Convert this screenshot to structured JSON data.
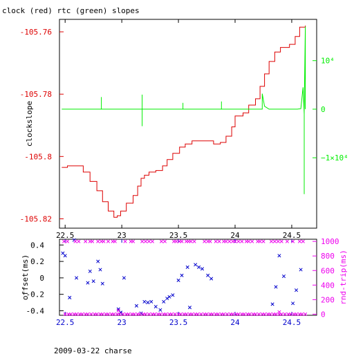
{
  "title": "clock (red) rtc (green) slopes",
  "footer": "2009-03-22 charse",
  "colors": {
    "clock": "#dd0000",
    "rtc": "#00ee00",
    "offset": "#0000cc",
    "rtt": "#ee00ee",
    "axis": "#000000"
  },
  "chart_data": [
    {
      "type": "line",
      "ylabel": "clockslope",
      "y2label": "",
      "xlim": [
        22.45,
        24.72
      ],
      "ylim": [
        -105.823,
        -105.756
      ],
      "y2lim": [
        -24500,
        18500
      ],
      "x_ticks": [
        "22.5",
        "23",
        "23.5",
        "24",
        "24.5"
      ],
      "x_tick_values": [
        22.5,
        23,
        23.5,
        24,
        24.5
      ],
      "y_ticks": [
        "-105.76",
        "-105.78",
        "-105.8",
        "-105.82"
      ],
      "y_tick_values": [
        -105.76,
        -105.78,
        -105.8,
        -105.82
      ],
      "y2_ticks": [
        "10⁴",
        "0",
        "−1×10⁴"
      ],
      "y2_tick_values": [
        10000,
        0,
        -10000
      ],
      "series": [
        {
          "id": "clock",
          "axis": "left",
          "points": [
            [
              22.47,
              -105.8035
            ],
            [
              22.52,
              -105.803
            ],
            [
              22.6,
              -105.803
            ],
            [
              22.66,
              -105.805
            ],
            [
              22.72,
              -105.808
            ],
            [
              22.78,
              -105.811
            ],
            [
              22.83,
              -105.8145
            ],
            [
              22.88,
              -105.8175
            ],
            [
              22.93,
              -105.8195
            ],
            [
              22.96,
              -105.819
            ],
            [
              22.99,
              -105.8175
            ],
            [
              23.04,
              -105.815
            ],
            [
              23.1,
              -105.8125
            ],
            [
              23.14,
              -105.8095
            ],
            [
              23.17,
              -105.807
            ],
            [
              23.2,
              -105.806
            ],
            [
              23.24,
              -105.805
            ],
            [
              23.3,
              -105.8045
            ],
            [
              23.36,
              -105.803
            ],
            [
              23.4,
              -105.801
            ],
            [
              23.45,
              -105.799
            ],
            [
              23.51,
              -105.797
            ],
            [
              23.56,
              -105.796
            ],
            [
              23.62,
              -105.795
            ],
            [
              23.69,
              -105.795
            ],
            [
              23.75,
              -105.795
            ],
            [
              23.81,
              -105.796
            ],
            [
              23.87,
              -105.7955
            ],
            [
              23.92,
              -105.7935
            ],
            [
              23.97,
              -105.7905
            ],
            [
              24.0,
              -105.787
            ],
            [
              24.07,
              -105.786
            ],
            [
              24.12,
              -105.7835
            ],
            [
              24.18,
              -105.7815
            ],
            [
              24.22,
              -105.7775
            ],
            [
              24.26,
              -105.7735
            ],
            [
              24.3,
              -105.7695
            ],
            [
              24.35,
              -105.7665
            ],
            [
              24.4,
              -105.765
            ],
            [
              24.48,
              -105.764
            ],
            [
              24.53,
              -105.7615
            ],
            [
              24.57,
              -105.7585
            ],
            [
              24.62,
              -105.758
            ]
          ]
        },
        {
          "id": "rtc",
          "axis": "right",
          "points": [
            [
              22.47,
              0
            ],
            [
              22.82,
              0
            ],
            [
              22.82,
              2500
            ],
            [
              22.82,
              0
            ],
            [
              23.18,
              0
            ],
            [
              23.18,
              3000
            ],
            [
              23.18,
              -3500
            ],
            [
              23.18,
              0
            ],
            [
              23.54,
              0
            ],
            [
              23.54,
              1300
            ],
            [
              23.54,
              0
            ],
            [
              23.88,
              0
            ],
            [
              23.88,
              1600
            ],
            [
              23.88,
              0
            ],
            [
              24.24,
              0
            ],
            [
              24.24,
              3200
            ],
            [
              24.26,
              600
            ],
            [
              24.3,
              0
            ],
            [
              24.55,
              0
            ],
            [
              24.58,
              100
            ],
            [
              24.6,
              4500
            ],
            [
              24.61,
              -1000
            ],
            [
              24.61,
              -17500
            ],
            [
              24.61,
              0
            ],
            [
              24.62,
              17000
            ],
            [
              24.62,
              0
            ]
          ]
        }
      ]
    },
    {
      "type": "scatter",
      "ylabel": "offset(ms)",
      "y2label": "rnd-trip(ms)",
      "xlim": [
        22.45,
        24.72
      ],
      "ylim": [
        -0.455,
        0.47
      ],
      "y2lim": [
        -15,
        1030
      ],
      "x_ticks": [
        "22.5",
        "23",
        "23.5",
        "24",
        "24.5"
      ],
      "x_tick_values": [
        22.5,
        23,
        23.5,
        24,
        24.5
      ],
      "y_ticks": [
        "0.4",
        "0.2",
        "0",
        "-0.2",
        "-0.4"
      ],
      "y_tick_values": [
        0.4,
        0.2,
        0,
        -0.2,
        -0.4
      ],
      "y2_ticks": [
        "1000",
        "800",
        "600",
        "400",
        "200",
        "0"
      ],
      "y2_tick_values": [
        1000,
        800,
        600,
        400,
        200,
        0
      ],
      "series": [
        {
          "id": "offset",
          "axis": "left",
          "points": [
            [
              22.48,
              0.3
            ],
            [
              22.5,
              0.27
            ],
            [
              22.54,
              -0.24
            ],
            [
              22.58,
              0.46
            ],
            [
              22.6,
              0.0
            ],
            [
              22.7,
              -0.06
            ],
            [
              22.72,
              0.08
            ],
            [
              22.75,
              -0.04
            ],
            [
              22.79,
              0.2
            ],
            [
              22.81,
              0.1
            ],
            [
              22.83,
              -0.07
            ],
            [
              22.97,
              -0.38
            ],
            [
              22.99,
              -0.42
            ],
            [
              23.02,
              0.0
            ],
            [
              23.13,
              -0.34
            ],
            [
              23.17,
              -0.43
            ],
            [
              23.2,
              -0.29
            ],
            [
              23.23,
              -0.3
            ],
            [
              23.26,
              -0.29
            ],
            [
              23.3,
              -0.35
            ],
            [
              23.34,
              -0.39
            ],
            [
              23.37,
              -0.29
            ],
            [
              23.4,
              -0.25
            ],
            [
              23.42,
              -0.23
            ],
            [
              23.45,
              -0.21
            ],
            [
              23.5,
              -0.03
            ],
            [
              23.53,
              0.03
            ],
            [
              23.58,
              0.13
            ],
            [
              23.6,
              -0.36
            ],
            [
              23.65,
              0.16
            ],
            [
              23.68,
              0.13
            ],
            [
              23.71,
              0.11
            ],
            [
              23.76,
              0.03
            ],
            [
              23.79,
              -0.01
            ],
            [
              24.33,
              -0.32
            ],
            [
              24.36,
              -0.11
            ],
            [
              24.39,
              0.27
            ],
            [
              24.43,
              0.02
            ],
            [
              24.51,
              -0.31
            ],
            [
              24.54,
              -0.15
            ],
            [
              24.58,
              0.1
            ]
          ]
        },
        {
          "id": "rtt",
          "axis": "right",
          "points": [
            [
              22.5,
              0
            ],
            [
              22.53,
              0
            ],
            [
              22.55,
              0
            ],
            [
              22.58,
              0
            ],
            [
              22.6,
              0
            ],
            [
              22.63,
              0
            ],
            [
              22.65,
              0
            ],
            [
              22.68,
              0
            ],
            [
              22.7,
              0
            ],
            [
              22.73,
              0
            ],
            [
              22.76,
              0
            ],
            [
              22.78,
              0
            ],
            [
              22.81,
              0
            ],
            [
              22.83,
              0
            ],
            [
              22.86,
              0
            ],
            [
              22.88,
              0
            ],
            [
              22.91,
              0
            ],
            [
              22.93,
              0
            ],
            [
              22.96,
              0
            ],
            [
              22.98,
              0
            ],
            [
              23.01,
              0
            ],
            [
              23.04,
              0
            ],
            [
              23.06,
              0
            ],
            [
              23.09,
              0
            ],
            [
              23.11,
              0
            ],
            [
              23.14,
              0
            ],
            [
              23.16,
              0
            ],
            [
              23.19,
              0
            ],
            [
              23.21,
              0
            ],
            [
              23.24,
              0
            ],
            [
              23.27,
              0
            ],
            [
              23.29,
              0
            ],
            [
              23.32,
              0
            ],
            [
              23.34,
              0
            ],
            [
              23.37,
              0
            ],
            [
              23.39,
              0
            ],
            [
              23.42,
              0
            ],
            [
              23.44,
              0
            ],
            [
              23.47,
              0
            ],
            [
              23.5,
              0
            ],
            [
              23.52,
              0
            ],
            [
              23.55,
              0
            ],
            [
              23.57,
              0
            ],
            [
              23.6,
              0
            ],
            [
              23.62,
              0
            ],
            [
              23.65,
              0
            ],
            [
              23.67,
              0
            ],
            [
              23.7,
              0
            ],
            [
              23.73,
              0
            ],
            [
              23.75,
              0
            ],
            [
              23.78,
              0
            ],
            [
              23.8,
              0
            ],
            [
              23.83,
              0
            ],
            [
              23.85,
              0
            ],
            [
              23.88,
              0
            ],
            [
              23.9,
              0
            ],
            [
              23.93,
              0
            ],
            [
              23.96,
              0
            ],
            [
              23.98,
              0
            ],
            [
              24.01,
              0
            ],
            [
              24.03,
              0
            ],
            [
              24.06,
              0
            ],
            [
              24.08,
              0
            ],
            [
              24.11,
              0
            ],
            [
              24.13,
              0
            ],
            [
              24.16,
              0
            ],
            [
              24.18,
              0
            ],
            [
              24.21,
              0
            ],
            [
              24.24,
              0
            ],
            [
              24.26,
              0
            ],
            [
              24.29,
              0
            ],
            [
              24.31,
              0
            ],
            [
              24.34,
              0
            ],
            [
              24.36,
              0
            ],
            [
              24.39,
              0
            ],
            [
              24.41,
              0
            ],
            [
              24.44,
              0
            ],
            [
              24.47,
              0
            ],
            [
              24.49,
              0
            ],
            [
              24.52,
              0
            ],
            [
              24.54,
              0
            ],
            [
              24.57,
              0
            ],
            [
              24.59,
              0
            ],
            [
              24.62,
              0
            ],
            [
              22.49,
              1000
            ],
            [
              22.52,
              1000
            ],
            [
              22.59,
              1000
            ],
            [
              22.62,
              1000
            ],
            [
              22.68,
              1000
            ],
            [
              22.72,
              1000
            ],
            [
              22.74,
              1000
            ],
            [
              22.79,
              1000
            ],
            [
              22.82,
              1000
            ],
            [
              22.84,
              1000
            ],
            [
              22.88,
              1000
            ],
            [
              22.92,
              1000
            ],
            [
              22.94,
              1000
            ],
            [
              23.03,
              1000
            ],
            [
              23.08,
              1000
            ],
            [
              23.1,
              1000
            ],
            [
              23.18,
              1000
            ],
            [
              23.21,
              1000
            ],
            [
              23.24,
              1000
            ],
            [
              23.27,
              1000
            ],
            [
              23.35,
              1000
            ],
            [
              23.38,
              1000
            ],
            [
              23.46,
              1000
            ],
            [
              23.48,
              1000
            ],
            [
              23.51,
              1000
            ],
            [
              23.53,
              1000
            ],
            [
              23.57,
              1000
            ],
            [
              23.59,
              1000
            ],
            [
              23.61,
              1000
            ],
            [
              23.64,
              1000
            ],
            [
              23.73,
              1000
            ],
            [
              23.76,
              1000
            ],
            [
              23.78,
              1000
            ],
            [
              23.83,
              1000
            ],
            [
              23.86,
              1000
            ],
            [
              23.9,
              1000
            ],
            [
              23.92,
              1000
            ],
            [
              23.95,
              1000
            ],
            [
              23.98,
              1000
            ],
            [
              24.0,
              1000
            ],
            [
              24.03,
              1000
            ],
            [
              24.06,
              1000
            ],
            [
              24.1,
              1000
            ],
            [
              24.12,
              1000
            ],
            [
              24.15,
              1000
            ],
            [
              24.2,
              1000
            ],
            [
              24.22,
              1000
            ],
            [
              24.25,
              1000
            ],
            [
              24.32,
              1000
            ],
            [
              24.35,
              1000
            ],
            [
              24.38,
              1000
            ],
            [
              24.41,
              1000
            ],
            [
              24.46,
              1000
            ],
            [
              24.51,
              1000
            ],
            [
              24.57,
              1000
            ],
            [
              24.6,
              1000
            ],
            [
              22.97,
              50
            ],
            [
              24.39,
              30
            ]
          ]
        }
      ]
    }
  ]
}
